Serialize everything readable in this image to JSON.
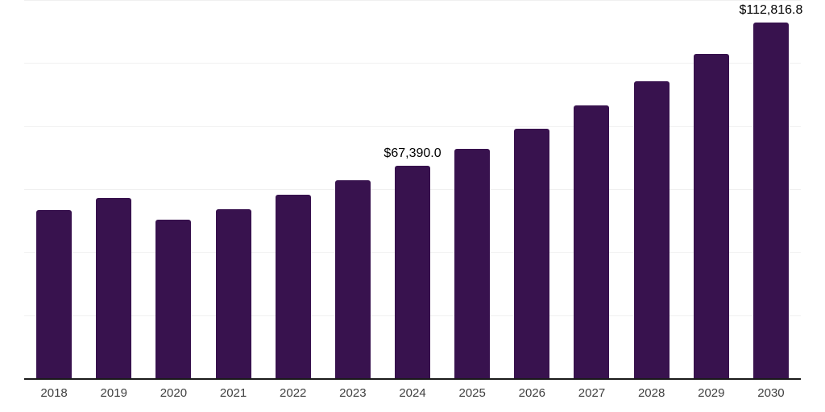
{
  "chart_data": {
    "type": "bar",
    "title": "",
    "xlabel": "",
    "ylabel": "",
    "categories": [
      "2018",
      "2019",
      "2020",
      "2021",
      "2022",
      "2023",
      "2024",
      "2025",
      "2026",
      "2027",
      "2028",
      "2029",
      "2030"
    ],
    "values": [
      53400,
      57100,
      50300,
      53700,
      58100,
      62700,
      67390.0,
      72900,
      79100,
      86500,
      94300,
      102800,
      112816.8
    ],
    "ylim": [
      0,
      120000
    ],
    "gridline_step": 20000,
    "grid": true,
    "legend": "none",
    "data_labels": [
      {
        "category": "2024",
        "text": "$67,390.0"
      },
      {
        "category": "2030",
        "text": "$112,816.8"
      }
    ]
  },
  "styles": {
    "bar_color": "#38124E",
    "axis_color": "#1a1a1a",
    "gridline_color": "#f0f0f0",
    "tick_label_color": "#404040",
    "data_label_color": "#000000",
    "background": "#ffffff"
  }
}
